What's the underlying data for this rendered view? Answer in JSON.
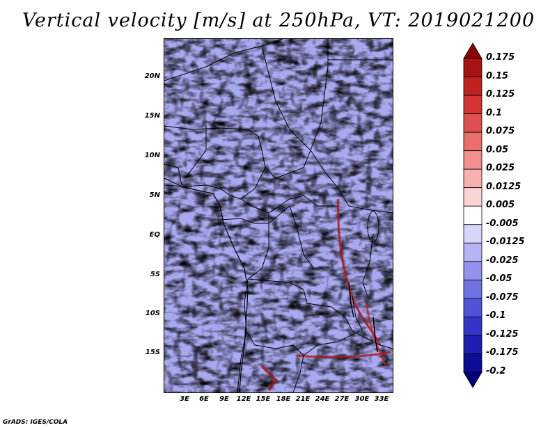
{
  "title": "Vertical velocity [m/s] at 250hPa, VT: 2019021200",
  "footer": "GrADS: IGES/COLA",
  "map": {
    "region": "Central Africa",
    "lat_labels": [
      "20N",
      "15N",
      "10N",
      "5N",
      "EQ",
      "5S",
      "10S",
      "15S"
    ],
    "lon_labels": [
      "3E",
      "6E",
      "9E",
      "12E",
      "15E",
      "18E",
      "21E",
      "24E",
      "27E",
      "30E",
      "33E"
    ]
  },
  "colorbar": {
    "labels": [
      "0.175",
      "0.15",
      "0.125",
      "0.1",
      "0.075",
      "0.05",
      "0.025",
      "0.0125",
      "0.005",
      "-0.005",
      "-0.0125",
      "-0.025",
      "-0.05",
      "-0.075",
      "-0.1",
      "-0.125",
      "-0.175",
      "-0.2"
    ],
    "colors": [
      "#8b0000",
      "#a81414",
      "#c02222",
      "#d43434",
      "#e05050",
      "#ea6e6e",
      "#f28f8f",
      "#f7b1b1",
      "#fad4d4",
      "#ffffff",
      "#d6d6fa",
      "#b4b4f4",
      "#9292ec",
      "#7171e2",
      "#5252d6",
      "#3434c6",
      "#1e1eb0",
      "#0c0c96",
      "#000078"
    ]
  }
}
